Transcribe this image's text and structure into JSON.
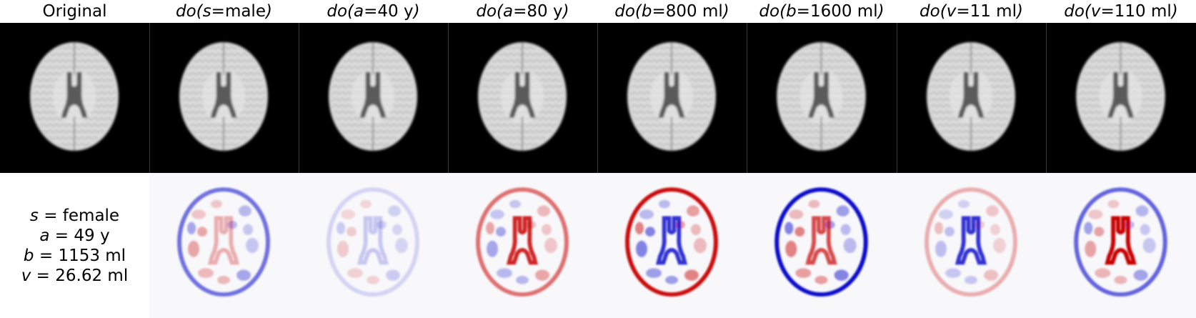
{
  "column_headers": [
    {
      "type": "plain",
      "text": "Original"
    },
    {
      "type": "do",
      "prefix": "do(",
      "var": "s",
      "eq": " = ",
      "value": "male",
      "suffix": ")"
    },
    {
      "type": "do",
      "prefix": "do(",
      "var": "a",
      "eq": " = ",
      "value": "40 y",
      "suffix": ")"
    },
    {
      "type": "do",
      "prefix": "do(",
      "var": "a",
      "eq": " = ",
      "value": "80 y",
      "suffix": ")"
    },
    {
      "type": "do",
      "prefix": "do(",
      "var": "b",
      "eq": " = ",
      "value": "800 ml",
      "suffix": ")"
    },
    {
      "type": "do",
      "prefix": "do(",
      "var": "b",
      "eq": " = ",
      "value": "1600 ml",
      "suffix": ")"
    },
    {
      "type": "do",
      "prefix": "do(",
      "var": "v",
      "eq": " = ",
      "value": "11 ml",
      "suffix": ")"
    },
    {
      "type": "do",
      "prefix": "do(",
      "var": "v",
      "eq": " = ",
      "value": "110 ml",
      "suffix": ")"
    }
  ],
  "original_attributes": [
    {
      "var": "s",
      "eq": " = ",
      "value": "female"
    },
    {
      "var": "a",
      "eq": " = ",
      "value": "49 y"
    },
    {
      "var": "b",
      "eq": " = ",
      "value": "1153 ml"
    },
    {
      "var": "v",
      "eq": " = ",
      "value": "26.62 ml"
    }
  ],
  "colors": {
    "background_image": "#000000",
    "brain_gray": "#d6d6d6",
    "ventricle": "#5a5a5a",
    "diff_red": "#c80000",
    "diff_blue": "#0000c8",
    "diff_background": "#f8f8fb"
  },
  "difference_maps": [
    {
      "column": 1,
      "rim_color": "blue",
      "rim_intensity": 0.55,
      "ventricle_color": "red",
      "ventricle_intensity": 0.3
    },
    {
      "column": 2,
      "rim_color": "blue",
      "rim_intensity": 0.15,
      "ventricle_color": "blue",
      "ventricle_intensity": 0.2
    },
    {
      "column": 3,
      "rim_color": "red",
      "rim_intensity": 0.55,
      "ventricle_color": "red",
      "ventricle_intensity": 0.85
    },
    {
      "column": 4,
      "rim_color": "red",
      "rim_intensity": 0.95,
      "ventricle_color": "blue",
      "ventricle_intensity": 0.8
    },
    {
      "column": 5,
      "rim_color": "blue",
      "rim_intensity": 0.95,
      "ventricle_color": "red",
      "ventricle_intensity": 0.7
    },
    {
      "column": 6,
      "rim_color": "red",
      "rim_intensity": 0.3,
      "ventricle_color": "blue",
      "ventricle_intensity": 0.8
    },
    {
      "column": 7,
      "rim_color": "blue",
      "rim_intensity": 0.6,
      "ventricle_color": "red",
      "ventricle_intensity": 1.0
    }
  ]
}
